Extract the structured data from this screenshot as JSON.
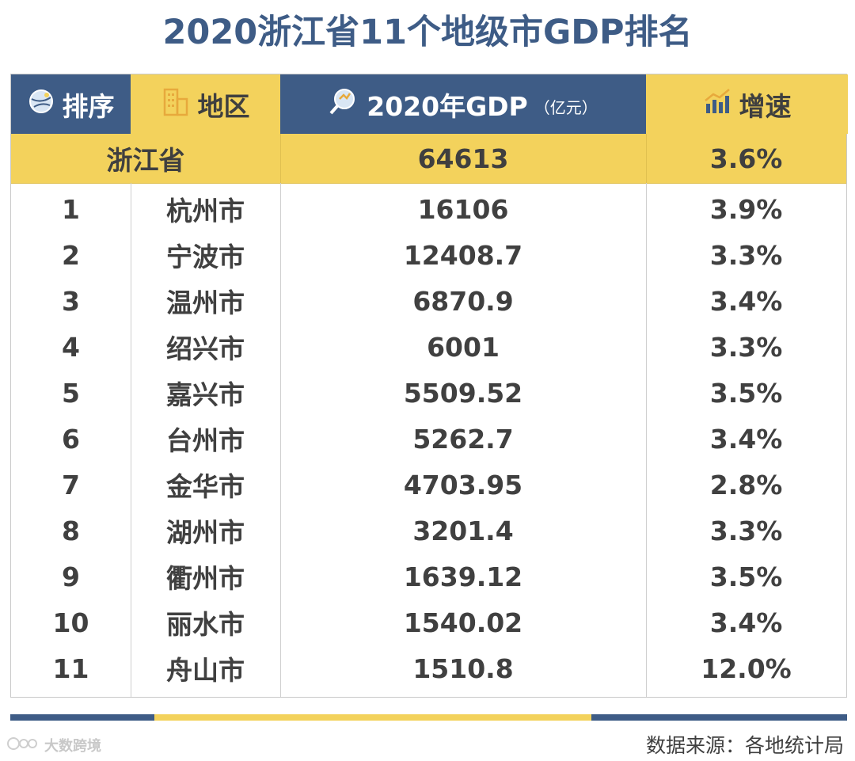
{
  "title": "2020浙江省11个地级市GDP排名",
  "header": {
    "rank": "排序",
    "region": "地区",
    "gdp": "2020年GDP",
    "gdp_unit": "（亿元）",
    "growth": "增速"
  },
  "province": {
    "name": "浙江省",
    "gdp": "64613",
    "growth": "3.6%"
  },
  "rows": [
    {
      "rank": "1",
      "city": "杭州市",
      "gdp": "16106",
      "growth": "3.9%"
    },
    {
      "rank": "2",
      "city": "宁波市",
      "gdp": "12408.7",
      "growth": "3.3%"
    },
    {
      "rank": "3",
      "city": "温州市",
      "gdp": "6870.9",
      "growth": "3.4%"
    },
    {
      "rank": "4",
      "city": "绍兴市",
      "gdp": "6001",
      "growth": "3.3%"
    },
    {
      "rank": "5",
      "city": "嘉兴市",
      "gdp": "5509.52",
      "growth": "3.5%"
    },
    {
      "rank": "6",
      "city": "台州市",
      "gdp": "5262.7",
      "growth": "3.4%"
    },
    {
      "rank": "7",
      "city": "金华市",
      "gdp": "4703.95",
      "growth": "2.8%"
    },
    {
      "rank": "8",
      "city": "湖州市",
      "gdp": "3201.4",
      "growth": "3.3%"
    },
    {
      "rank": "9",
      "city": "衢州市",
      "gdp": "1639.12",
      "growth": "3.5%"
    },
    {
      "rank": "10",
      "city": "丽水市",
      "gdp": "1540.02",
      "growth": "3.4%"
    },
    {
      "rank": "11",
      "city": "舟山市",
      "gdp": "1510.8",
      "growth": "12.0%"
    }
  ],
  "footer": {
    "watermark": "大数跨境",
    "source": "数据来源：各地统计局"
  },
  "colors": {
    "navy": "#3e5c86",
    "yellow": "#f3d25c"
  },
  "icons": [
    "globe-icon",
    "building-icon",
    "magnifier-chart-icon",
    "growth-chart-icon"
  ]
}
